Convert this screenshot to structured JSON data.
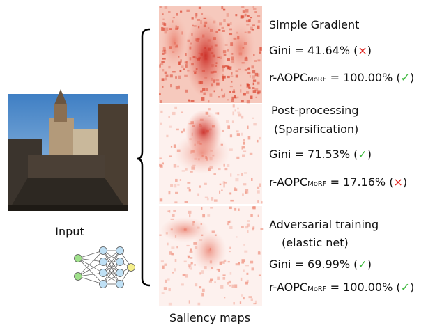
{
  "input_label": "Input",
  "saliency_label": "Saliency maps",
  "methods": [
    {
      "title": [
        "Simple Gradient"
      ],
      "gini": "Gini = 41.64% (",
      "gini_mark": "×",
      "gini_mark_color": "#e0201b",
      "gini_close": ")",
      "aopc": "r-AOPC",
      "aopc_sub": "MoRF",
      "aopc_value": " = 100.00% (",
      "aopc_mark": "✓",
      "aopc_mark_color": "#3cb83c",
      "aopc_close": ")"
    },
    {
      "title": [
        "Post-processing",
        "(Sparsification)"
      ],
      "gini": "Gini = 71.53% (",
      "gini_mark": "✓",
      "gini_mark_color": "#3cb83c",
      "gini_close": ")",
      "aopc": "r-AOPC",
      "aopc_sub": "MoRF",
      "aopc_value": " = 17.16% (",
      "aopc_mark": "×",
      "aopc_mark_color": "#e0201b",
      "aopc_close": ")"
    },
    {
      "title": [
        "Adversarial training",
        "(elastic net)"
      ],
      "gini": "Gini = 69.99% (",
      "gini_mark": "✓",
      "gini_mark_color": "#3cb83c",
      "gini_close": ")",
      "aopc": "r-AOPC",
      "aopc_sub": "MoRF",
      "aopc_value": " = 100.00% (",
      "aopc_mark": "✓",
      "aopc_mark_color": "#3cb83c",
      "aopc_close": ")"
    }
  ]
}
